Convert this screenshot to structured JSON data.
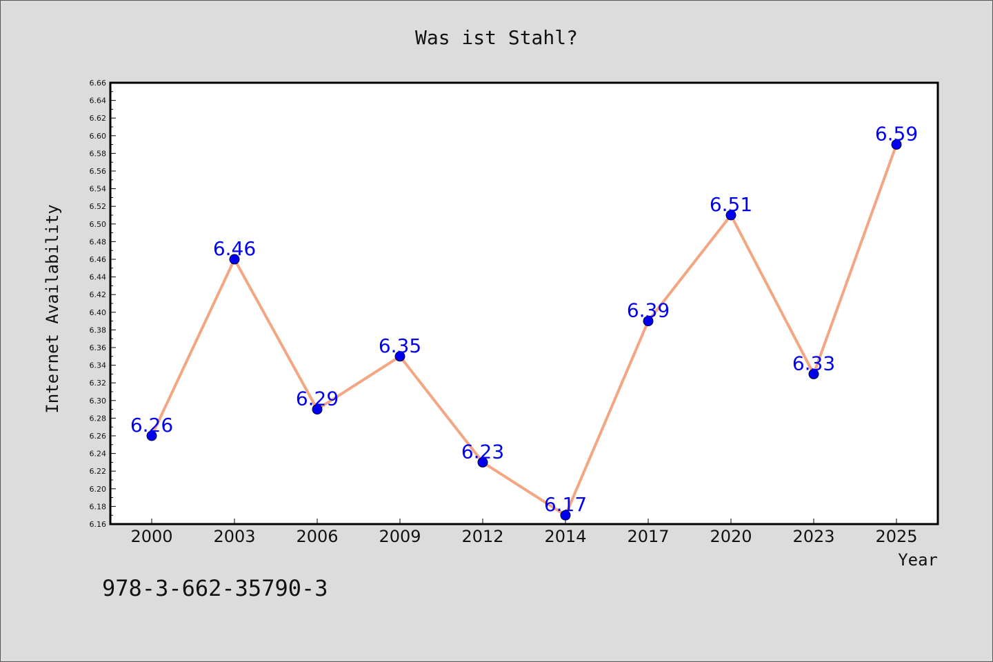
{
  "chart_data": {
    "type": "line",
    "title": "Was ist Stahl?",
    "xlabel": "Year",
    "ylabel": "Internet Availability",
    "categories": [
      "2000",
      "2003",
      "2006",
      "2009",
      "2012",
      "2014",
      "2017",
      "2020",
      "2023",
      "2025"
    ],
    "series": [
      {
        "values": [
          6.26,
          6.46,
          6.29,
          6.35,
          6.23,
          6.17,
          6.39,
          6.51,
          6.33,
          6.59
        ],
        "labels": [
          "6.26",
          "6.46",
          "6.29",
          "6.35",
          "6.23",
          "6.17",
          "6.39",
          "6.51",
          "6.33",
          "6.59"
        ]
      }
    ],
    "ylim": [
      6.16,
      6.66
    ],
    "yticks": [
      "6.16",
      "6.18",
      "6.20",
      "6.22",
      "6.24",
      "6.26",
      "6.28",
      "6.30",
      "6.32",
      "6.34",
      "6.36",
      "6.38",
      "6.40",
      "6.42",
      "6.44",
      "6.46",
      "6.48",
      "6.50",
      "6.52",
      "6.54",
      "6.56",
      "6.58",
      "6.60",
      "6.62",
      "6.64",
      "6.66"
    ],
    "grid": false,
    "colors": {
      "line": "#f4a582",
      "marker": "#0000ee",
      "label": "#0000ee",
      "background": "#dcdcdc",
      "plot_background": "#ffffff"
    }
  },
  "footnote": "978-3-662-35790-3"
}
